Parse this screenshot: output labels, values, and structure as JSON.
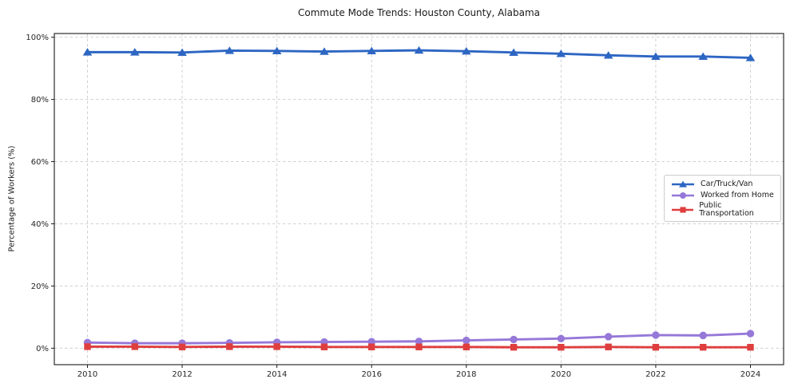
{
  "chart_data": {
    "type": "line",
    "title": "Commute Mode Trends: Houston County, Alabama",
    "xlabel": "",
    "ylabel": "Percentage of Workers (%)",
    "x": [
      2010,
      2011,
      2012,
      2013,
      2014,
      2015,
      2016,
      2017,
      2018,
      2019,
      2020,
      2021,
      2022,
      2023,
      2024
    ],
    "xticks": [
      2010,
      2012,
      2014,
      2016,
      2018,
      2020,
      2022,
      2024
    ],
    "yticks": [
      0,
      20,
      40,
      60,
      80,
      100
    ],
    "ytick_suffix": "%",
    "xlim": [
      2009.3,
      2024.7
    ],
    "ylim": [
      -5.3,
      101.2
    ],
    "grid": "dashed",
    "grid_color": "#cccccc",
    "axis_color": "#1a1a1a",
    "tick_label_color": "#262626",
    "legend_position": "center-right",
    "series": [
      {
        "name": "Car/Truck/Van",
        "color": "#2d66c3",
        "marker": "triangle",
        "values": [
          95.2,
          95.2,
          95.1,
          95.7,
          95.6,
          95.4,
          95.6,
          95.8,
          95.5,
          95.1,
          94.7,
          94.2,
          93.8,
          93.8,
          93.4
        ]
      },
      {
        "name": "Worked from Home",
        "color": "#9678d8",
        "marker": "circle",
        "values": [
          1.8,
          1.6,
          1.6,
          1.7,
          1.9,
          2.0,
          2.1,
          2.2,
          2.5,
          2.8,
          3.1,
          3.7,
          4.2,
          4.1,
          4.7
        ]
      },
      {
        "name": "Public Transportation",
        "color": "#df3e3e",
        "marker": "square",
        "values": [
          0.5,
          0.5,
          0.4,
          0.5,
          0.5,
          0.4,
          0.4,
          0.4,
          0.4,
          0.3,
          0.3,
          0.4,
          0.3,
          0.3,
          0.3
        ]
      }
    ]
  }
}
